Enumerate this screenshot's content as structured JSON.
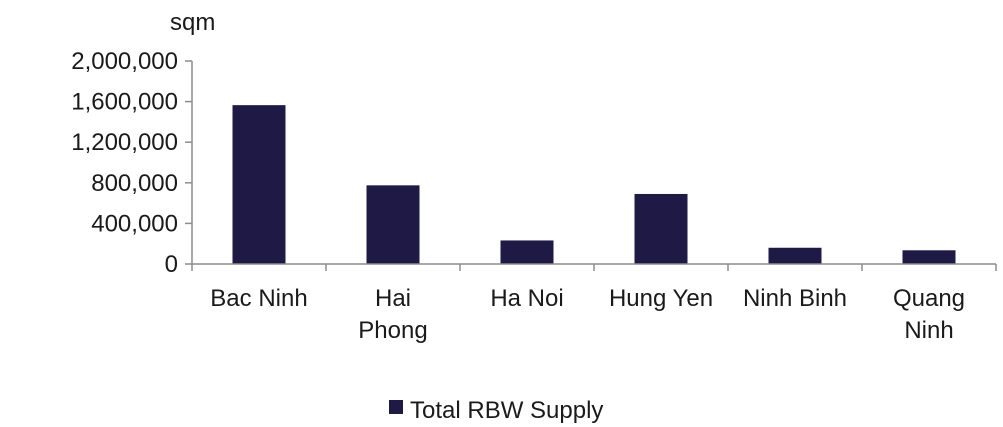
{
  "chart_data": {
    "type": "bar",
    "ylabel": "sqm",
    "categories": [
      "Bac Ninh",
      "Hai Phong",
      "Ha Noi",
      "Hung Yen",
      "Ninh Binh",
      "Quang Ninh"
    ],
    "category_lines": [
      [
        "Bac Ninh"
      ],
      [
        "Hai",
        "Phong"
      ],
      [
        "Ha Noi"
      ],
      [
        "Hung Yen"
      ],
      [
        "Ninh Binh"
      ],
      [
        "Quang",
        "Ninh"
      ]
    ],
    "series": [
      {
        "name": "Total RBW Supply",
        "values": [
          1565000,
          775000,
          232000,
          690000,
          160000,
          135000
        ]
      }
    ],
    "ylim": [
      0,
      2000000
    ],
    "yticks": [
      0,
      400000,
      800000,
      1200000,
      1600000,
      2000000
    ],
    "ytick_labels": [
      "0",
      "400,000",
      "800,000",
      "1,200,000",
      "1,600,000",
      "2,000,000"
    ],
    "grid": false,
    "legend_position": "bottom-center",
    "colors": {
      "bar": "#1f1a45",
      "axis": "#8c8c8c",
      "text": "#1a1a1a"
    }
  }
}
